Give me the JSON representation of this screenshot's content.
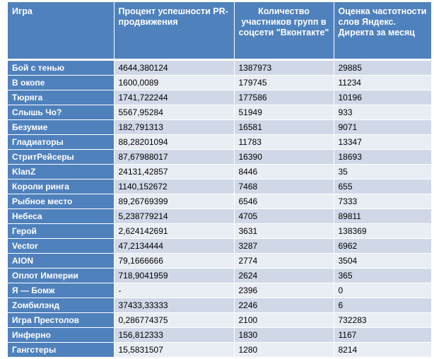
{
  "table": {
    "headers": [
      "Игра",
      "Процент успешности PR-продвижения",
      "Количество участников групп в соцсети \"Вконтакте\"",
      "Оценка частотности слов Яндекс. Директа за месяц"
    ],
    "rows": [
      [
        "Бой с тенью",
        "4644,380124",
        "1387973",
        "29885"
      ],
      [
        "В окопе",
        "1600,0089",
        "179745",
        "11234"
      ],
      [
        "Тюряга",
        "1741,722244",
        "177586",
        "10196"
      ],
      [
        "Слышь Чо?",
        "5567,95284",
        "51949",
        "933"
      ],
      [
        "Безумие",
        "182,791313",
        "16581",
        "9071"
      ],
      [
        "Гладиаторы",
        "88,28201094",
        "11783",
        "13347"
      ],
      [
        "СтритРейсеры",
        "87,67988017",
        "16390",
        "18693"
      ],
      [
        "KlanZ",
        "24131,42857",
        "8446",
        "35"
      ],
      [
        "Короли ринга",
        "1140,152672",
        "7468",
        "655"
      ],
      [
        "Рыбное место",
        "89,26769399",
        "6546",
        "7333"
      ],
      [
        "Небеса",
        "5,238779214",
        "4705",
        "89811"
      ],
      [
        "Герой",
        "2,624142691",
        "3631",
        "138369"
      ],
      [
        "Vector",
        "47,2134444",
        "3287",
        "6962"
      ],
      [
        "AION",
        "79,1666666",
        "2774",
        "3504"
      ],
      [
        "Оплот Империи",
        "718,9041959",
        "2624",
        "365"
      ],
      [
        "Я — Бомж",
        "-",
        "2396",
        "0"
      ],
      [
        "Zомбилэнд",
        "37433,33333",
        "2246",
        "6"
      ],
      [
        "Игра Престолов",
        "0,286774375",
        "2100",
        "732283"
      ],
      [
        "Инферно",
        "156,812333",
        "1830",
        "1167"
      ],
      [
        "Гангстеры",
        "15,5831507",
        "1280",
        "8214"
      ]
    ]
  }
}
